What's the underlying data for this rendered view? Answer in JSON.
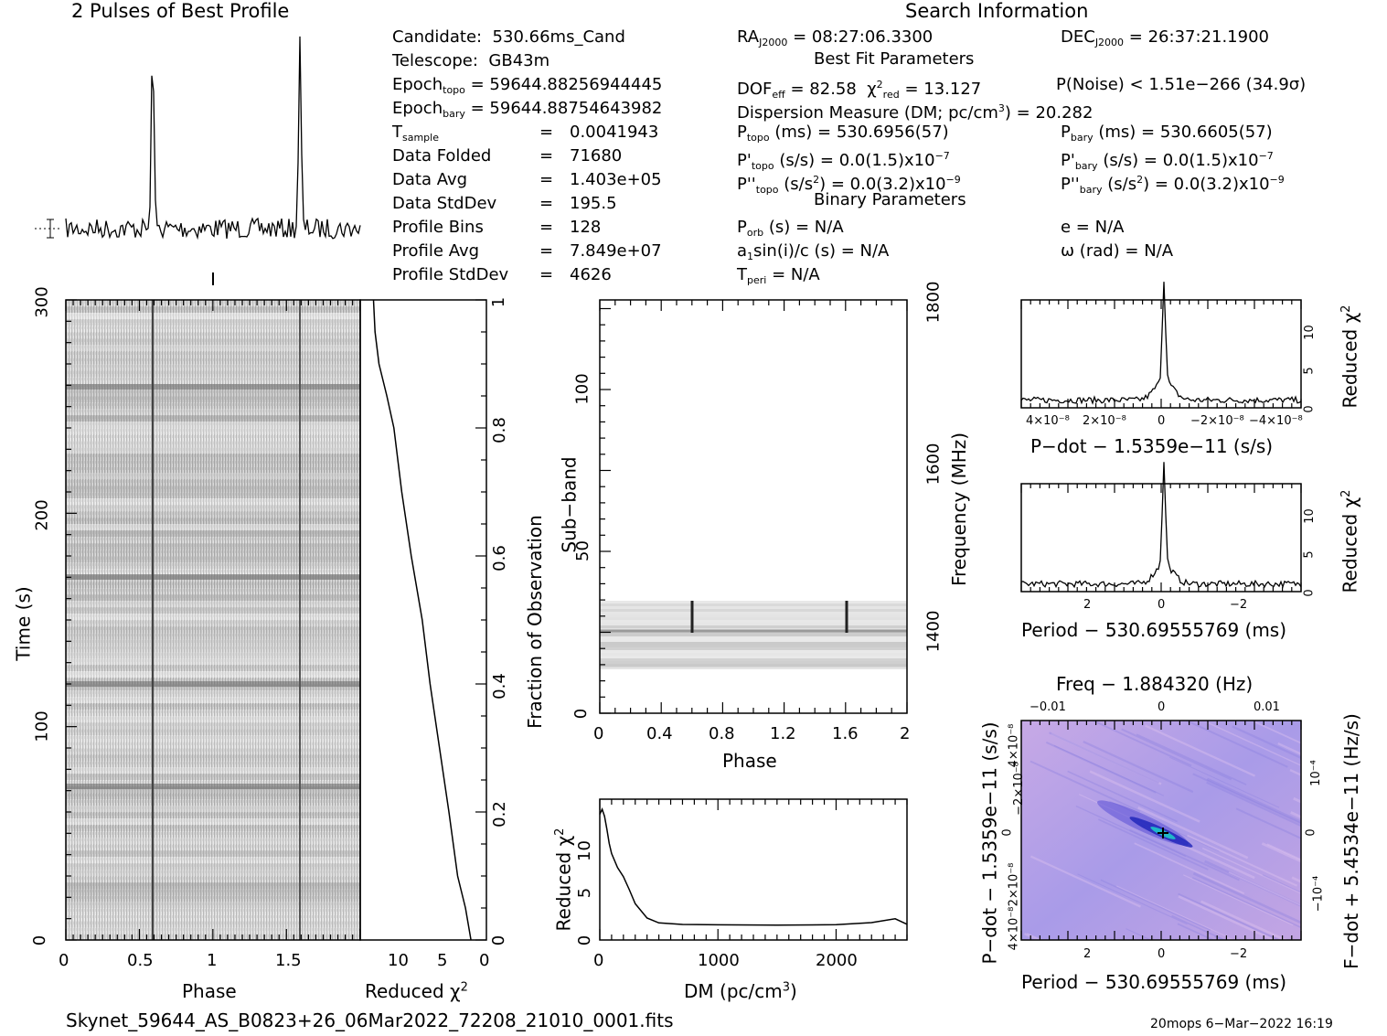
{
  "header": {
    "profile_title": "2 Pulses of Best Profile",
    "search_title": "Search Information",
    "best_fit_title": "Best Fit Parameters",
    "binary_title": "Binary Parameters"
  },
  "info_col1": [
    {
      "key": "Candidate:",
      "val": "530.66ms_Cand"
    },
    {
      "key": "Telescope:",
      "val": "GB43m"
    },
    {
      "key": "Epoch_topo",
      "val": "= 59644.88256944445"
    },
    {
      "key": "Epoch_bary",
      "val": "= 59644.88754643982"
    },
    {
      "key": "T_sample",
      "val": "0.0041943"
    },
    {
      "key": "Data Folded",
      "val": "71680"
    },
    {
      "key": "Data Avg",
      "val": "1.403e+05"
    },
    {
      "key": "Data StdDev",
      "val": "195.5"
    },
    {
      "key": "Profile Bins",
      "val": "128"
    },
    {
      "key": "Profile Avg",
      "val": "7.849e+07"
    },
    {
      "key": "Profile StdDev",
      "val": "4626"
    }
  ],
  "search_info": {
    "ra": "= 08:27:06.3300",
    "dec": "= 26:37:21.1900",
    "dof": "= 82.58",
    "chi2": "= 13.127",
    "pnoise": "P(Noise) < 1.51e−266  (34.9σ)",
    "dm": "Dispersion Measure (DM; pc/cm",
    "dm_val": ") = 20.282",
    "ptopo": "(ms) =  530.6956(57)",
    "pbary": "(ms) =  530.6605(57)",
    "pdot_topo": "(s/s) = 0.0(1.5)x10",
    "pdot_bary": "(s/s) = 0.0(1.5)x10",
    "pddot_topo": "= 0.0(3.2)x10",
    "pddot_bary": "= 0.0(3.2)x10",
    "exp7": "−7",
    "exp9": "−9",
    "porb": "(s) = N/A",
    "e": "e = N/A",
    "a1": "sin(i)/c (s) = N/A",
    "omega": "ω (rad) = N/A",
    "tperi": "= N/A"
  },
  "labels": {
    "phase": "Phase",
    "time": "Time (s)",
    "reduced": "Reduced χ",
    "fraction": "Fraction of Observation",
    "subband": "Sub−band",
    "frequency": "Frequency (MHz)",
    "dm_axis": "DM (pc/cm",
    "pdot_axis": "P−dot − 1.5359e−11 (s/s)",
    "period_axis": "Period − 530.69555769 (ms)",
    "freq_axis": "Freq − 1.884320 (Hz)",
    "pdot_left": "P−dot − 1.5359e−11 (s/s)",
    "fdot_right": "F−dot + 5.4534e−11 (Hz/s)"
  },
  "footer": {
    "filename": "Skynet_59644_AS_B0823+26_06Mar2022_72208_21010_0001.fits",
    "stamp": "20mops   6−Mar−2022 16:19"
  },
  "chart_data": [
    {
      "type": "line",
      "title": "2 Pulses of Best Profile",
      "x_range": [
        0,
        2
      ],
      "peaks_phase": [
        0.59,
        1.59
      ]
    },
    {
      "type": "heatmap",
      "xlabel": "Phase",
      "ylabel": "Time (s)",
      "xlim": [
        0,
        2
      ],
      "ylim": [
        0,
        300
      ],
      "x_ticks": [
        "0",
        "0.5",
        "1",
        "1.5"
      ],
      "y_ticks": [
        "0",
        "100",
        "200",
        "300"
      ]
    },
    {
      "type": "line",
      "xlabel": "Reduced χ²",
      "ylabel": "Fraction of Observation",
      "x_ticks": [
        "10",
        "5",
        "0"
      ],
      "y_ticks": [
        "0",
        "0.2",
        "0.4",
        "0.6",
        "0.8",
        "1"
      ],
      "x": [
        0.8,
        1.5,
        2.5,
        3.6,
        4.8,
        6.0,
        7.0,
        8.4,
        9.6,
        10.6,
        11.5,
        12.5,
        13.0,
        13.2
      ],
      "y": [
        0,
        0.05,
        0.1,
        0.2,
        0.3,
        0.4,
        0.5,
        0.6,
        0.7,
        0.8,
        0.85,
        0.9,
        0.95,
        1.0
      ]
    },
    {
      "type": "heatmap",
      "xlabel": "Phase",
      "ylabel": "Sub−band",
      "xlim": [
        0,
        2
      ],
      "ylim": [
        0,
        128
      ],
      "x_ticks": [
        "0",
        "0.4",
        "0.8",
        "1.2",
        "1.6",
        "2"
      ],
      "y_ticks": [
        "0",
        "50",
        "100"
      ],
      "right_ticks": [
        "1400",
        "1600",
        "1800"
      ],
      "right_label": "Frequency (MHz)"
    },
    {
      "type": "line",
      "xlabel": "DM (pc/cm³)",
      "ylabel": "Reduced χ²",
      "xlim": [
        0,
        2600
      ],
      "ylim": [
        0,
        14
      ],
      "x_ticks": [
        "0",
        "1000",
        "2000"
      ],
      "y_ticks": [
        "0",
        "5",
        "10"
      ],
      "x": [
        0,
        20,
        40,
        60,
        80,
        100,
        150,
        200,
        250,
        300,
        400,
        500,
        700,
        1000,
        1500,
        2000,
        2300,
        2500,
        2600
      ],
      "y": [
        12.5,
        13.0,
        12.3,
        11.0,
        9.6,
        8.6,
        7.2,
        6.3,
        5.0,
        3.6,
        2.2,
        1.6,
        1.5,
        1.5,
        1.4,
        1.4,
        1.6,
        2.0,
        1.6
      ]
    },
    {
      "type": "line",
      "xlabel": "P−dot − 1.5359e−11 (s/s)",
      "ylabel": "Reduced χ²",
      "ylim": [
        0,
        14
      ],
      "x_ticks": [
        "4×10⁻⁸",
        "2×10⁻⁸",
        "0",
        "−2×10⁻⁸",
        "−4×10⁻⁸"
      ],
      "y_ticks": [
        "0",
        "5",
        "10"
      ],
      "peak": 13.1
    },
    {
      "type": "line",
      "xlabel": "Period − 530.69555769 (ms)",
      "ylabel": "Reduced χ²",
      "ylim": [
        0,
        14
      ],
      "x_ticks": [
        "2",
        "0",
        "−2"
      ],
      "y_ticks": [
        "0",
        "5",
        "10"
      ],
      "peak": 13.1
    },
    {
      "type": "heatmap",
      "xlabel": "Period − 530.69555769 (ms)",
      "ylabel": "P−dot − 1.5359e−11 (s/s)",
      "top_label": "Freq − 1.884320 (Hz)",
      "right_label": "F−dot + 5.4534e−11 (Hz/s)",
      "x_ticks": [
        "2",
        "0",
        "−2"
      ],
      "top_ticks": [
        "−0.01",
        "0",
        "0.01"
      ],
      "y_ticks": [
        "4×10⁻⁸",
        "−2×10⁻⁸",
        "0",
        "2×10⁻⁸",
        "4×10⁻⁸"
      ],
      "right_ticks": [
        "10⁻⁴",
        "0",
        "−10⁻⁴"
      ]
    }
  ]
}
